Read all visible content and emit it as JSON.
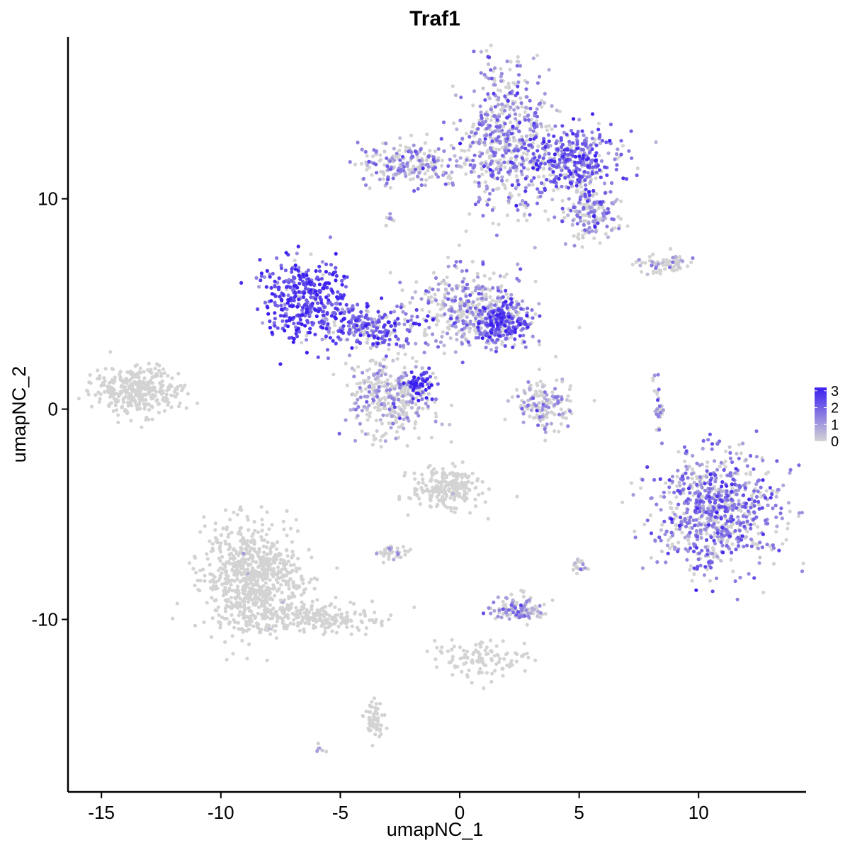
{
  "chart_data": {
    "type": "scatter",
    "title": "Traf1",
    "xlabel": "umapNC_1",
    "ylabel": "umapNC_2",
    "xlim": [
      -16.4,
      14.5
    ],
    "ylim": [
      -18.2,
      17.7
    ],
    "x_ticks": [
      -15,
      -10,
      -5,
      0,
      5,
      10
    ],
    "x_tick_labels": [
      "-15",
      "-10",
      "-5",
      "0",
      "5",
      "10"
    ],
    "y_ticks": [
      -10,
      0,
      10
    ],
    "y_tick_labels": [
      "-10",
      "0",
      "10"
    ],
    "grid": false,
    "legend": {
      "placement": "right",
      "type": "colorbar",
      "range": [
        0,
        3.2
      ],
      "ticks": [
        0,
        1,
        2,
        3
      ],
      "tick_labels": [
        "0",
        "1",
        "2",
        "3"
      ],
      "low_color": "#d3d3d3",
      "high_color": "#3a1ff0"
    },
    "series": [
      {
        "values_description_note": "",
        "clusters": [
          {
            "cx": 1.9,
            "cy": 13.0,
            "sx": 0.9,
            "sy": 1.8,
            "n": 520,
            "expr": 1.3
          },
          {
            "cx": 4.7,
            "cy": 11.7,
            "sx": 1.0,
            "sy": 0.8,
            "n": 380,
            "expr": 1.9
          },
          {
            "cx": 5.4,
            "cy": 9.3,
            "sx": 0.6,
            "sy": 0.6,
            "n": 160,
            "expr": 1.2
          },
          {
            "cx": -1.8,
            "cy": 11.7,
            "sx": 1.3,
            "sy": 0.5,
            "n": 240,
            "expr": 1.2
          },
          {
            "cx": -6.5,
            "cy": 5.2,
            "sx": 0.9,
            "sy": 0.9,
            "n": 360,
            "expr": 2.4
          },
          {
            "cx": -3.9,
            "cy": 4.0,
            "sx": 1.1,
            "sy": 0.5,
            "n": 240,
            "expr": 2.0
          },
          {
            "cx": 0.3,
            "cy": 4.7,
            "sx": 1.1,
            "sy": 0.9,
            "n": 360,
            "expr": 1.1
          },
          {
            "cx": 1.9,
            "cy": 4.1,
            "sx": 0.6,
            "sy": 0.5,
            "n": 220,
            "expr": 2.1
          },
          {
            "cx": -2.9,
            "cy": 0.6,
            "sx": 0.9,
            "sy": 1.0,
            "n": 340,
            "expr": 0.8
          },
          {
            "cx": -1.7,
            "cy": 1.2,
            "sx": 0.3,
            "sy": 0.3,
            "n": 60,
            "expr": 2.8
          },
          {
            "cx": 3.5,
            "cy": 0.2,
            "sx": 0.6,
            "sy": 0.6,
            "n": 150,
            "expr": 0.8
          },
          {
            "cx": 8.6,
            "cy": 6.9,
            "sx": 0.6,
            "sy": 0.2,
            "n": 70,
            "expr": 0.5
          },
          {
            "cx": 8.3,
            "cy": 0.2,
            "sx": 0.1,
            "sy": 0.6,
            "n": 30,
            "expr": 0.9
          },
          {
            "cx": 10.8,
            "cy": -4.8,
            "sx": 1.3,
            "sy": 1.4,
            "n": 760,
            "expr": 1.5
          },
          {
            "cx": -13.5,
            "cy": 0.9,
            "sx": 0.9,
            "sy": 0.6,
            "n": 340,
            "expr": 0.05
          },
          {
            "cx": -8.7,
            "cy": -8.0,
            "sx": 1.0,
            "sy": 1.3,
            "n": 760,
            "expr": 0.03
          },
          {
            "cx": -6.2,
            "cy": -9.9,
            "sx": 1.3,
            "sy": 0.4,
            "n": 220,
            "expr": 0.03
          },
          {
            "cx": -3.6,
            "cy": -14.8,
            "sx": 0.2,
            "sy": 0.5,
            "n": 60,
            "expr": 0.1
          },
          {
            "cx": -0.6,
            "cy": -3.7,
            "sx": 0.7,
            "sy": 0.5,
            "n": 220,
            "expr": 0.15
          },
          {
            "cx": -2.8,
            "cy": -6.8,
            "sx": 0.3,
            "sy": 0.2,
            "n": 40,
            "expr": 0.4
          },
          {
            "cx": 2.4,
            "cy": -9.5,
            "sx": 0.6,
            "sy": 0.3,
            "n": 120,
            "expr": 1.0
          },
          {
            "cx": 0.8,
            "cy": -11.8,
            "sx": 1.0,
            "sy": 0.5,
            "n": 110,
            "expr": 0.05
          },
          {
            "cx": -5.8,
            "cy": -16.2,
            "sx": 0.1,
            "sy": 0.1,
            "n": 6,
            "expr": 1.0
          },
          {
            "cx": -2.9,
            "cy": 9.0,
            "sx": 0.1,
            "sy": 0.2,
            "n": 8,
            "expr": 1.2
          },
          {
            "cx": 5.0,
            "cy": -7.4,
            "sx": 0.2,
            "sy": 0.2,
            "n": 20,
            "expr": 0.6
          }
        ]
      }
    ]
  }
}
